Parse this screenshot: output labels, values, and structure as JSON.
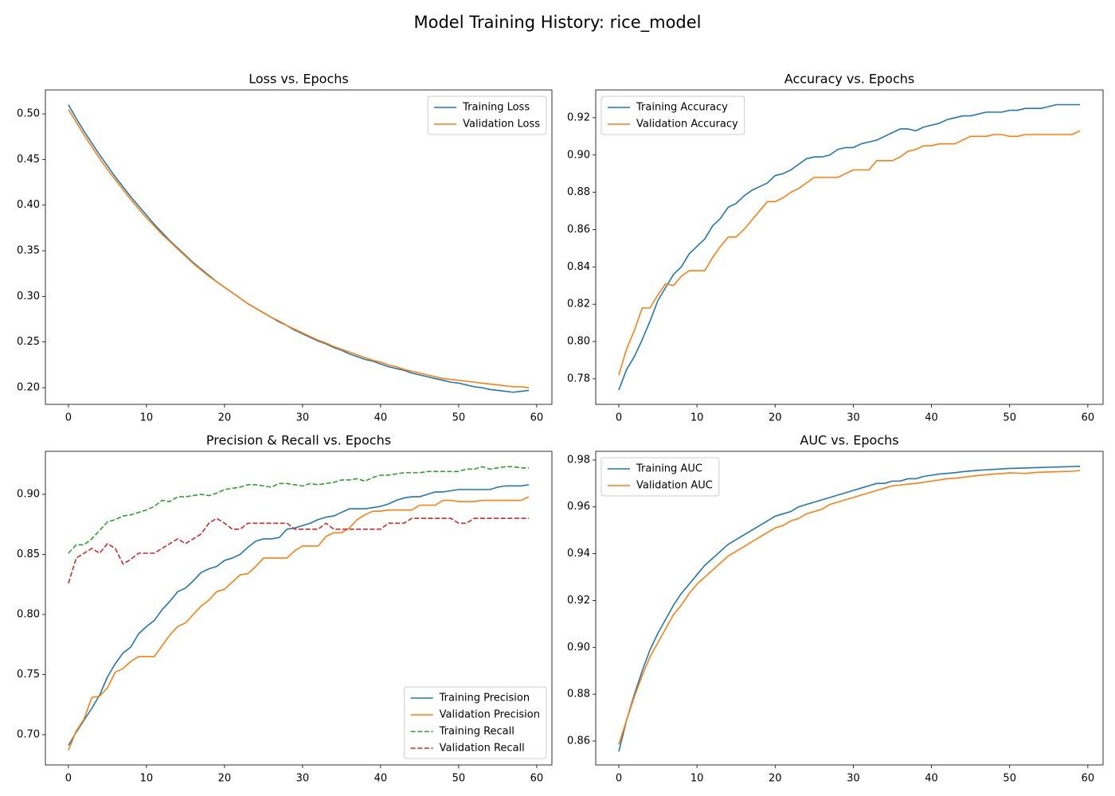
{
  "title": "Model Training History: rice_model",
  "chart_data": [
    {
      "type": "line",
      "title": "Loss vs. Epochs",
      "legend": "upper right",
      "x": [
        0,
        1,
        2,
        3,
        4,
        5,
        6,
        7,
        8,
        9,
        10,
        11,
        12,
        13,
        14,
        15,
        16,
        17,
        18,
        19,
        20,
        21,
        22,
        23,
        24,
        25,
        26,
        27,
        28,
        29,
        30,
        31,
        32,
        33,
        34,
        35,
        36,
        37,
        38,
        39,
        40,
        41,
        42,
        43,
        44,
        45,
        46,
        47,
        48,
        49,
        50,
        51,
        52,
        53,
        54,
        55,
        56,
        57,
        58,
        59
      ],
      "xlim": [
        -2.95,
        61.95
      ],
      "xticks": [
        0,
        10,
        20,
        30,
        40,
        50,
        60
      ],
      "ylim": [
        0.1817,
        0.5262
      ],
      "yticks": [
        {
          "value": 0.2,
          "label": "0.20"
        },
        0.25,
        {
          "value": 0.3,
          "label": "0.30"
        },
        0.35,
        {
          "value": 0.4,
          "label": "0.40"
        },
        0.45,
        {
          "value": 0.5,
          "label": "0.50"
        }
      ],
      "series": [
        {
          "name": "Training Loss",
          "color": "#1f77b4",
          "linestyle": "solid",
          "values": [
            0.51,
            0.495,
            0.481,
            0.468,
            0.455,
            0.443,
            0.431,
            0.42,
            0.409,
            0.399,
            0.389,
            0.379,
            0.37,
            0.361,
            0.353,
            0.345,
            0.337,
            0.33,
            0.323,
            0.316,
            0.31,
            0.304,
            0.298,
            0.292,
            0.287,
            0.282,
            0.277,
            0.272,
            0.268,
            0.263,
            0.259,
            0.255,
            0.251,
            0.248,
            0.244,
            0.241,
            0.237,
            0.234,
            0.231,
            0.229,
            0.226,
            0.223,
            0.221,
            0.219,
            0.216,
            0.214,
            0.212,
            0.21,
            0.208,
            0.206,
            0.205,
            0.203,
            0.201,
            0.2,
            0.198,
            0.197,
            0.196,
            0.195,
            0.196,
            0.197
          ]
        },
        {
          "name": "Validation Loss",
          "color": "#ff7f0e",
          "linestyle": "solid",
          "values": [
            0.505,
            0.491,
            0.477,
            0.464,
            0.451,
            0.439,
            0.428,
            0.417,
            0.406,
            0.396,
            0.386,
            0.377,
            0.368,
            0.36,
            0.352,
            0.344,
            0.336,
            0.329,
            0.322,
            0.316,
            0.31,
            0.304,
            0.298,
            0.292,
            0.287,
            0.282,
            0.277,
            0.273,
            0.268,
            0.264,
            0.26,
            0.256,
            0.252,
            0.249,
            0.245,
            0.242,
            0.239,
            0.236,
            0.233,
            0.23,
            0.228,
            0.225,
            0.223,
            0.22,
            0.218,
            0.216,
            0.214,
            0.212,
            0.21,
            0.209,
            0.208,
            0.207,
            0.206,
            0.205,
            0.204,
            0.203,
            0.202,
            0.201,
            0.201,
            0.2
          ]
        }
      ]
    },
    {
      "type": "line",
      "title": "Accuracy vs. Epochs",
      "legend": "upper left",
      "x": [
        0,
        1,
        2,
        3,
        4,
        5,
        6,
        7,
        8,
        9,
        10,
        11,
        12,
        13,
        14,
        15,
        16,
        17,
        18,
        19,
        20,
        21,
        22,
        23,
        24,
        25,
        26,
        27,
        28,
        29,
        30,
        31,
        32,
        33,
        34,
        35,
        36,
        37,
        38,
        39,
        40,
        41,
        42,
        43,
        44,
        45,
        46,
        47,
        48,
        49,
        50,
        51,
        52,
        53,
        54,
        55,
        56,
        57,
        58,
        59
      ],
      "xlim": [
        -2.95,
        61.95
      ],
      "xticks": [
        0,
        10,
        20,
        30,
        40,
        50,
        60
      ],
      "ylim": [
        0.7663,
        0.9349
      ],
      "yticks": [
        0.78,
        {
          "value": 0.8,
          "label": "0.80"
        },
        0.82,
        0.84,
        0.86,
        0.88,
        {
          "value": 0.9,
          "label": "0.90"
        },
        0.92
      ],
      "series": [
        {
          "name": "Training Accuracy",
          "color": "#1f77b4",
          "linestyle": "solid",
          "values": [
            0.774,
            0.785,
            0.792,
            0.801,
            0.811,
            0.822,
            0.829,
            0.836,
            0.84,
            0.847,
            0.851,
            0.855,
            0.862,
            0.866,
            0.872,
            0.874,
            0.878,
            0.881,
            0.883,
            0.885,
            0.889,
            0.89,
            0.892,
            0.895,
            0.898,
            0.899,
            0.899,
            0.9,
            0.903,
            0.904,
            0.904,
            0.906,
            0.907,
            0.908,
            0.91,
            0.912,
            0.914,
            0.914,
            0.913,
            0.915,
            0.916,
            0.917,
            0.919,
            0.92,
            0.921,
            0.921,
            0.922,
            0.923,
            0.923,
            0.923,
            0.924,
            0.924,
            0.925,
            0.925,
            0.925,
            0.926,
            0.927,
            0.927,
            0.927,
            0.927
          ]
        },
        {
          "name": "Validation Accuracy",
          "color": "#ff7f0e",
          "linestyle": "solid",
          "values": [
            0.782,
            0.796,
            0.806,
            0.818,
            0.818,
            0.825,
            0.831,
            0.83,
            0.835,
            0.838,
            0.838,
            0.838,
            0.845,
            0.851,
            0.856,
            0.856,
            0.86,
            0.865,
            0.87,
            0.875,
            0.875,
            0.877,
            0.88,
            0.882,
            0.885,
            0.888,
            0.888,
            0.888,
            0.888,
            0.89,
            0.892,
            0.892,
            0.892,
            0.897,
            0.897,
            0.897,
            0.899,
            0.902,
            0.903,
            0.905,
            0.905,
            0.906,
            0.906,
            0.906,
            0.908,
            0.91,
            0.91,
            0.91,
            0.911,
            0.911,
            0.91,
            0.91,
            0.911,
            0.911,
            0.911,
            0.911,
            0.911,
            0.911,
            0.911,
            0.913
          ]
        }
      ]
    },
    {
      "type": "line",
      "title": "Precision & Recall vs. Epochs",
      "legend": "lower right",
      "x": [
        0,
        1,
        2,
        3,
        4,
        5,
        6,
        7,
        8,
        9,
        10,
        11,
        12,
        13,
        14,
        15,
        16,
        17,
        18,
        19,
        20,
        21,
        22,
        23,
        24,
        25,
        26,
        27,
        28,
        29,
        30,
        31,
        32,
        33,
        34,
        35,
        36,
        37,
        38,
        39,
        40,
        41,
        42,
        43,
        44,
        45,
        46,
        47,
        48,
        49,
        50,
        51,
        52,
        53,
        54,
        55,
        56,
        57,
        58,
        59
      ],
      "xlim": [
        -2.95,
        61.95
      ],
      "xticks": [
        0,
        10,
        20,
        30,
        40,
        50,
        60
      ],
      "ylim": [
        0.6748,
        0.9358
      ],
      "yticks": [
        {
          "value": 0.7,
          "label": "0.70"
        },
        0.75,
        {
          "value": 0.8,
          "label": "0.80"
        },
        0.85,
        {
          "value": 0.9,
          "label": "0.90"
        }
      ],
      "series": [
        {
          "name": "Training Precision",
          "color": "#1f77b4",
          "linestyle": "solid",
          "values": [
            0.691,
            0.702,
            0.712,
            0.722,
            0.733,
            0.748,
            0.759,
            0.768,
            0.773,
            0.784,
            0.79,
            0.795,
            0.804,
            0.811,
            0.819,
            0.822,
            0.828,
            0.835,
            0.838,
            0.84,
            0.845,
            0.847,
            0.85,
            0.856,
            0.861,
            0.863,
            0.863,
            0.864,
            0.871,
            0.872,
            0.874,
            0.876,
            0.879,
            0.881,
            0.882,
            0.885,
            0.888,
            0.888,
            0.888,
            0.889,
            0.89,
            0.892,
            0.895,
            0.897,
            0.898,
            0.898,
            0.9,
            0.902,
            0.902,
            0.903,
            0.904,
            0.904,
            0.904,
            0.904,
            0.904,
            0.906,
            0.907,
            0.907,
            0.907,
            0.908
          ]
        },
        {
          "name": "Validation Precision",
          "color": "#ff7f0e",
          "linestyle": "solid",
          "values": [
            0.687,
            0.703,
            0.713,
            0.731,
            0.732,
            0.739,
            0.752,
            0.755,
            0.761,
            0.765,
            0.765,
            0.765,
            0.774,
            0.783,
            0.79,
            0.793,
            0.8,
            0.807,
            0.812,
            0.819,
            0.821,
            0.827,
            0.833,
            0.834,
            0.84,
            0.847,
            0.847,
            0.847,
            0.847,
            0.853,
            0.857,
            0.857,
            0.857,
            0.865,
            0.868,
            0.868,
            0.872,
            0.879,
            0.883,
            0.886,
            0.886,
            0.887,
            0.887,
            0.887,
            0.887,
            0.891,
            0.891,
            0.891,
            0.895,
            0.895,
            0.894,
            0.894,
            0.894,
            0.895,
            0.895,
            0.895,
            0.895,
            0.895,
            0.895,
            0.898
          ]
        },
        {
          "name": "Training Recall",
          "color": "#2ca02c",
          "linestyle": "dashed",
          "values": [
            0.851,
            0.858,
            0.858,
            0.863,
            0.87,
            0.877,
            0.879,
            0.882,
            0.883,
            0.885,
            0.887,
            0.89,
            0.895,
            0.894,
            0.898,
            0.898,
            0.899,
            0.9,
            0.899,
            0.901,
            0.904,
            0.905,
            0.906,
            0.908,
            0.908,
            0.907,
            0.906,
            0.909,
            0.909,
            0.908,
            0.907,
            0.909,
            0.908,
            0.909,
            0.91,
            0.912,
            0.912,
            0.913,
            0.911,
            0.914,
            0.916,
            0.916,
            0.917,
            0.918,
            0.918,
            0.918,
            0.919,
            0.919,
            0.919,
            0.919,
            0.919,
            0.921,
            0.921,
            0.923,
            0.921,
            0.922,
            0.923,
            0.923,
            0.922,
            0.922
          ]
        },
        {
          "name": "Validation Recall",
          "color": "#d62728",
          "linestyle": "dashed",
          "values": [
            0.826,
            0.847,
            0.851,
            0.855,
            0.851,
            0.859,
            0.855,
            0.842,
            0.846,
            0.851,
            0.851,
            0.851,
            0.855,
            0.859,
            0.863,
            0.859,
            0.863,
            0.867,
            0.876,
            0.88,
            0.876,
            0.871,
            0.871,
            0.876,
            0.876,
            0.876,
            0.876,
            0.876,
            0.876,
            0.871,
            0.871,
            0.871,
            0.871,
            0.876,
            0.871,
            0.871,
            0.871,
            0.871,
            0.871,
            0.871,
            0.871,
            0.876,
            0.876,
            0.876,
            0.88,
            0.88,
            0.88,
            0.88,
            0.88,
            0.88,
            0.876,
            0.876,
            0.88,
            0.88,
            0.88,
            0.88,
            0.88,
            0.88,
            0.88,
            0.88
          ]
        }
      ]
    },
    {
      "type": "line",
      "title": "AUC vs. Epochs",
      "legend": "upper left",
      "x": [
        0,
        1,
        2,
        3,
        4,
        5,
        6,
        7,
        8,
        9,
        10,
        11,
        12,
        13,
        14,
        15,
        16,
        17,
        18,
        19,
        20,
        21,
        22,
        23,
        24,
        25,
        26,
        27,
        28,
        29,
        30,
        31,
        32,
        33,
        34,
        35,
        36,
        37,
        38,
        39,
        40,
        41,
        42,
        43,
        44,
        45,
        46,
        47,
        48,
        49,
        50,
        51,
        52,
        53,
        54,
        55,
        56,
        57,
        58,
        59
      ],
      "xlim": [
        -2.95,
        61.95
      ],
      "xticks": [
        0,
        10,
        20,
        30,
        40,
        50,
        60
      ],
      "ylim": [
        0.8498,
        0.9837
      ],
      "yticks": [
        0.86,
        0.88,
        {
          "value": 0.9,
          "label": "0.90"
        },
        0.92,
        0.94,
        0.96,
        0.98
      ],
      "series": [
        {
          "name": "Training AUC",
          "color": "#1f77b4",
          "linestyle": "solid",
          "values": [
            0.8555,
            0.869,
            0.88,
            0.89,
            0.899,
            0.906,
            0.912,
            0.918,
            0.923,
            0.927,
            0.931,
            0.935,
            0.938,
            0.941,
            0.944,
            0.946,
            0.948,
            0.95,
            0.952,
            0.954,
            0.956,
            0.957,
            0.958,
            0.96,
            0.961,
            0.962,
            0.963,
            0.964,
            0.965,
            0.966,
            0.967,
            0.968,
            0.969,
            0.97,
            0.97,
            0.971,
            0.971,
            0.972,
            0.972,
            0.973,
            0.9735,
            0.974,
            0.9743,
            0.9746,
            0.975,
            0.9753,
            0.9756,
            0.9758,
            0.976,
            0.9762,
            0.9764,
            0.9765,
            0.9766,
            0.9767,
            0.9768,
            0.9769,
            0.977,
            0.9771,
            0.9772,
            0.9773
          ]
        },
        {
          "name": "Validation AUC",
          "color": "#ff7f0e",
          "linestyle": "solid",
          "values": [
            0.8585,
            0.869,
            0.879,
            0.888,
            0.896,
            0.902,
            0.908,
            0.914,
            0.918,
            0.923,
            0.927,
            0.93,
            0.933,
            0.936,
            0.939,
            0.941,
            0.943,
            0.945,
            0.947,
            0.949,
            0.951,
            0.952,
            0.954,
            0.955,
            0.957,
            0.958,
            0.959,
            0.961,
            0.962,
            0.963,
            0.964,
            0.965,
            0.966,
            0.967,
            0.968,
            0.969,
            0.9693,
            0.9697,
            0.97,
            0.9705,
            0.971,
            0.9715,
            0.972,
            0.9722,
            0.9726,
            0.973,
            0.9734,
            0.9737,
            0.974,
            0.9742,
            0.9745,
            0.9744,
            0.9743,
            0.9746,
            0.9748,
            0.9749,
            0.975,
            0.9751,
            0.9752,
            0.9755
          ]
        }
      ]
    }
  ]
}
